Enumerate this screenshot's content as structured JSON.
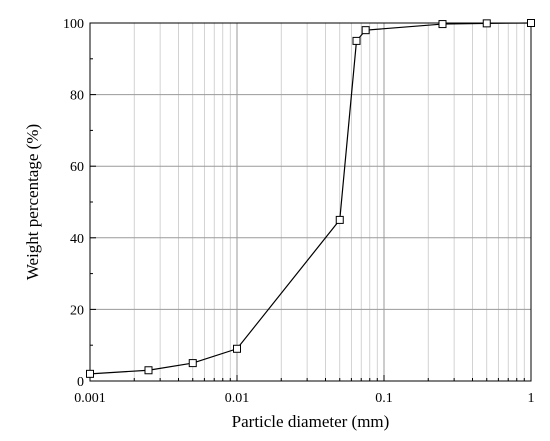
{
  "chart_data": {
    "type": "line",
    "title": "",
    "xlabel": "Particle diameter (mm)",
    "ylabel": "Weight percentage (%)",
    "x_scale": "log",
    "xlim": [
      0.001,
      1
    ],
    "ylim": [
      0,
      100
    ],
    "x_ticks": [
      0.001,
      0.01,
      0.1,
      1
    ],
    "x_tick_labels": [
      "0.001",
      "0.01",
      "0.1",
      "1"
    ],
    "y_ticks": [
      0,
      20,
      40,
      60,
      80,
      100
    ],
    "y_tick_labels": [
      "0",
      "20",
      "40",
      "60",
      "80",
      "100"
    ],
    "grid": true,
    "marker": "open-square",
    "line_color": "#000000",
    "series": [
      {
        "x": [
          0.001,
          0.0025,
          0.005,
          0.01,
          0.05,
          0.065,
          0.075,
          0.25,
          0.5,
          1
        ],
        "y": [
          2,
          3,
          5,
          9,
          45,
          95,
          98,
          99.7,
          99.9,
          100
        ]
      }
    ]
  }
}
